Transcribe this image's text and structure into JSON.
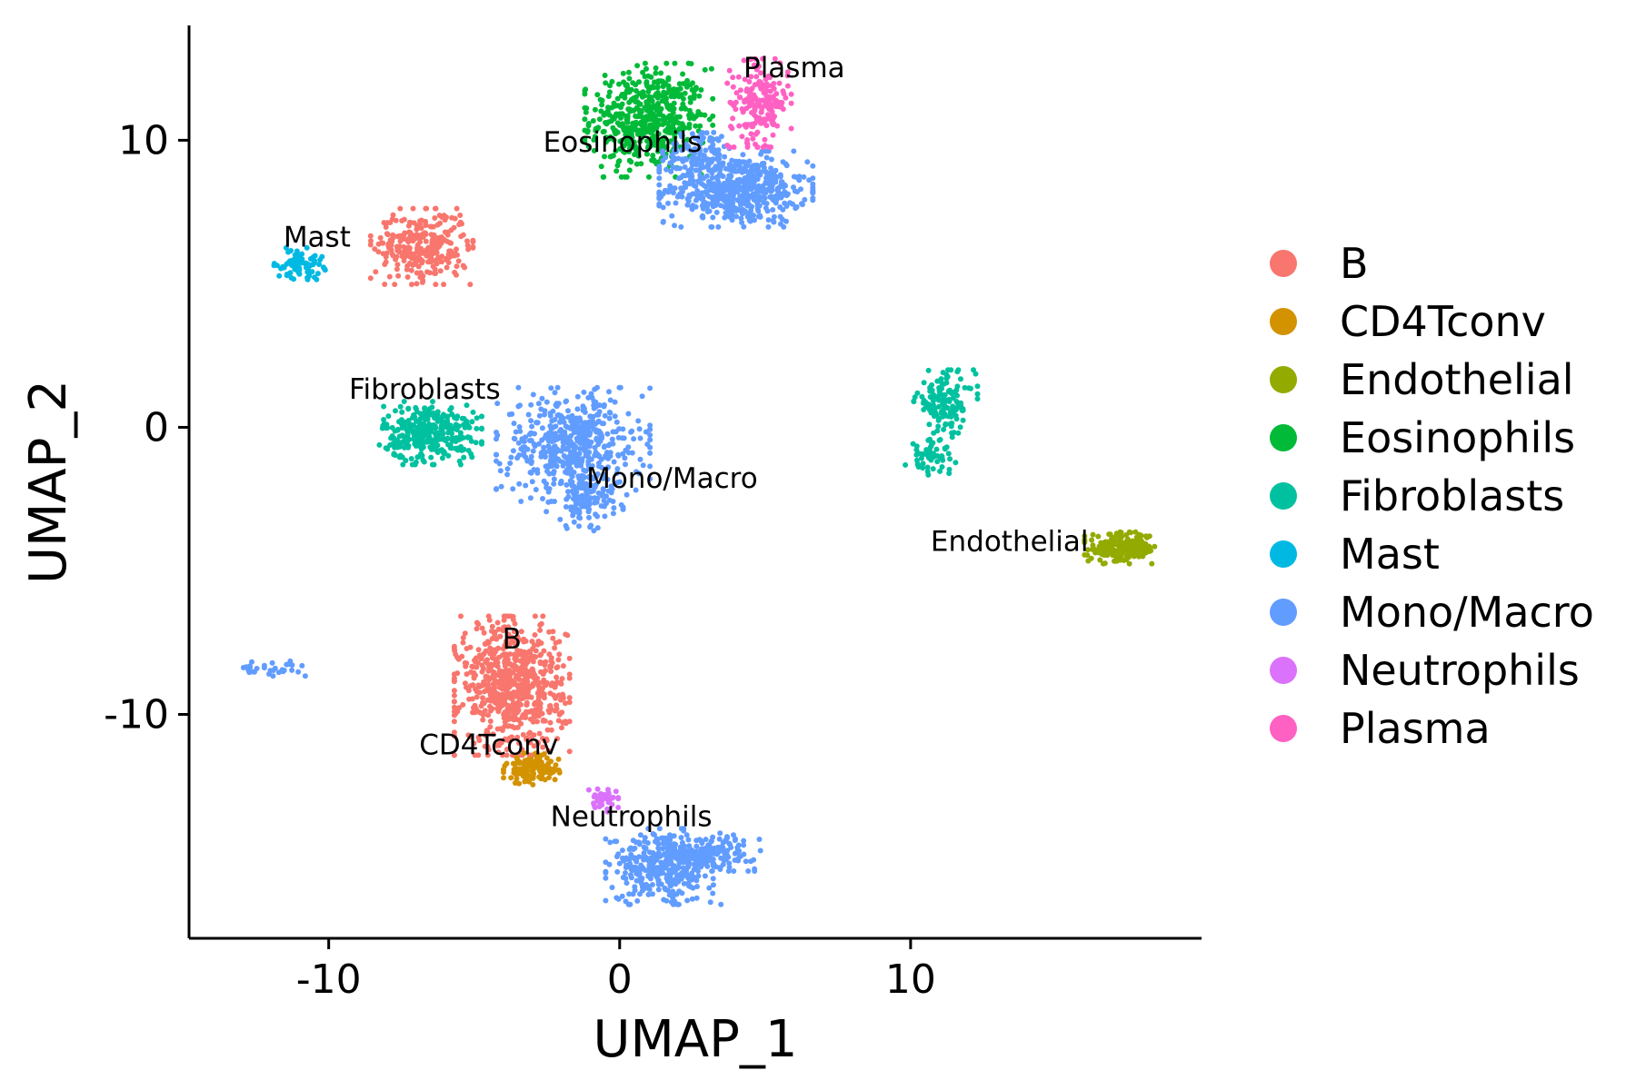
{
  "chart_data": {
    "type": "scatter",
    "xlabel": "UMAP_1",
    "ylabel": "UMAP_2",
    "xlim": [
      -14.8,
      20.0
    ],
    "ylim": [
      -17.8,
      14.0
    ],
    "xticks": [
      -10,
      0,
      10
    ],
    "yticks": [
      -10,
      0,
      10
    ],
    "grid": false,
    "legend_position": "right",
    "legend": [
      {
        "name": "B",
        "color": "#F8766D"
      },
      {
        "name": "CD4Tconv",
        "color": "#D39200"
      },
      {
        "name": "Endothelial",
        "color": "#93AA00"
      },
      {
        "name": "Eosinophils",
        "color": "#00BA38"
      },
      {
        "name": "Fibroblasts",
        "color": "#00C19F"
      },
      {
        "name": "Mast",
        "color": "#00B9E3"
      },
      {
        "name": "Mono/Macro",
        "color": "#619CFF"
      },
      {
        "name": "Neutrophils",
        "color": "#DB72FB"
      },
      {
        "name": "Plasma",
        "color": "#FF61C3"
      }
    ],
    "cluster_labels": [
      {
        "text": "Plasma",
        "x": 6.0,
        "y": 12.2
      },
      {
        "text": "Eosinophils",
        "x": 0.1,
        "y": 9.6
      },
      {
        "text": "Mast",
        "x": -10.4,
        "y": 6.3
      },
      {
        "text": "Fibroblasts",
        "x": -6.7,
        "y": 1.0
      },
      {
        "text": "Mono/Macro",
        "x": 1.8,
        "y": -2.1
      },
      {
        "text": "Endothelial",
        "x": 13.4,
        "y": -4.3
      },
      {
        "text": "B",
        "x": -3.7,
        "y": -7.7
      },
      {
        "text": "CD4Tconv",
        "x": -4.5,
        "y": -11.4
      },
      {
        "text": "Neutrophils",
        "x": 0.4,
        "y": -13.9
      }
    ],
    "clusters": [
      {
        "celltype": "Eosinophils",
        "cx": 1.0,
        "cy": 10.7,
        "sx": 1.0,
        "sy": 0.9,
        "n": 520
      },
      {
        "celltype": "Mono/Macro",
        "cx": 4.0,
        "cy": 8.3,
        "sx": 1.2,
        "sy": 0.6,
        "n": 560
      },
      {
        "celltype": "Mono/Macro",
        "cx": 2.8,
        "cy": 9.6,
        "sx": 0.6,
        "sy": 0.4,
        "n": 90
      },
      {
        "celltype": "Plasma",
        "cx": 4.8,
        "cy": 11.3,
        "sx": 0.5,
        "sy": 0.7,
        "n": 190
      },
      {
        "celltype": "B",
        "cx": -6.8,
        "cy": 6.3,
        "sx": 0.8,
        "sy": 0.6,
        "n": 300
      },
      {
        "celltype": "Mast",
        "cx": -11.0,
        "cy": 5.7,
        "sx": 0.4,
        "sy": 0.25,
        "n": 80
      },
      {
        "celltype": "Fibroblasts",
        "cx": -6.5,
        "cy": -0.2,
        "sx": 0.8,
        "sy": 0.5,
        "n": 340
      },
      {
        "celltype": "Mono/Macro",
        "cx": -1.6,
        "cy": -0.6,
        "sx": 1.2,
        "sy": 0.9,
        "n": 500
      },
      {
        "celltype": "Mono/Macro",
        "cx": -1.2,
        "cy": -2.5,
        "sx": 0.6,
        "sy": 0.5,
        "n": 120
      },
      {
        "celltype": "Fibroblasts",
        "cx": 11.2,
        "cy": 0.9,
        "sx": 0.5,
        "sy": 0.5,
        "n": 130
      },
      {
        "celltype": "Fibroblasts",
        "cx": 10.7,
        "cy": -1.0,
        "sx": 0.4,
        "sy": 0.3,
        "n": 60
      },
      {
        "celltype": "Endothelial",
        "cx": 17.3,
        "cy": -4.2,
        "sx": 0.6,
        "sy": 0.25,
        "n": 200
      },
      {
        "celltype": "B",
        "cx": -3.7,
        "cy": -9.0,
        "sx": 0.9,
        "sy": 1.1,
        "n": 700
      },
      {
        "celltype": "CD4Tconv",
        "cx": -3.0,
        "cy": -11.9,
        "sx": 0.45,
        "sy": 0.25,
        "n": 120
      },
      {
        "celltype": "Neutrophils",
        "cx": -0.6,
        "cy": -13.0,
        "sx": 0.25,
        "sy": 0.18,
        "n": 40
      },
      {
        "celltype": "Mono/Macro",
        "cx": 1.5,
        "cy": -15.3,
        "sx": 0.9,
        "sy": 0.6,
        "n": 360
      },
      {
        "celltype": "Mono/Macro",
        "cx": 3.3,
        "cy": -14.8,
        "sx": 0.7,
        "sy": 0.3,
        "n": 140
      },
      {
        "celltype": "Mono/Macro",
        "cx": -12.0,
        "cy": -8.4,
        "sx": 0.6,
        "sy": 0.12,
        "n": 30
      }
    ]
  }
}
